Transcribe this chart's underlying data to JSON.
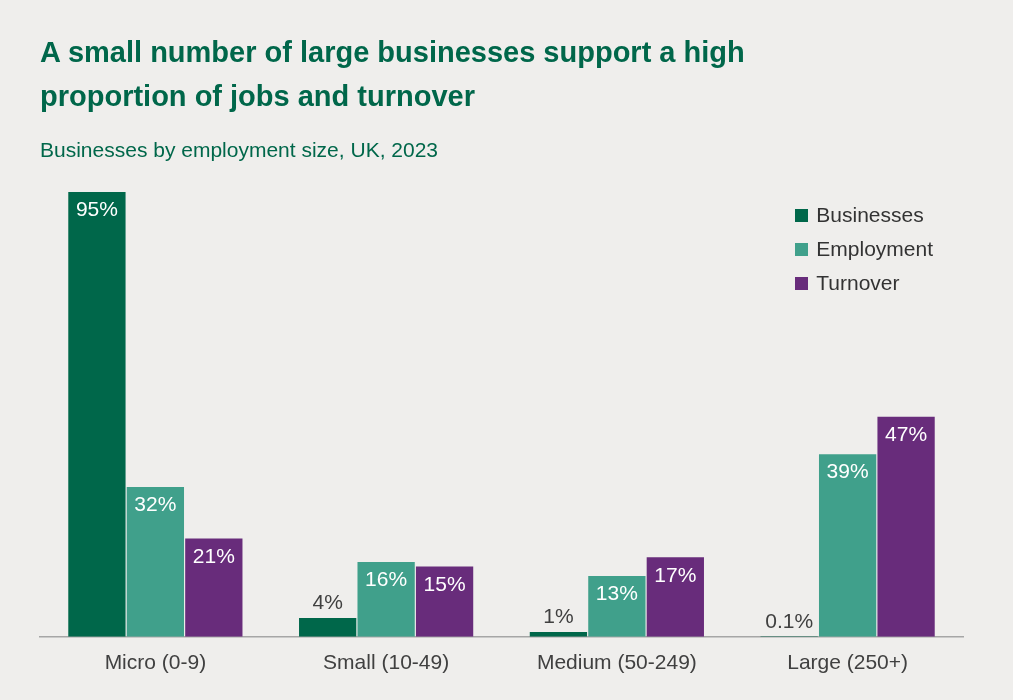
{
  "chart_data": {
    "type": "bar",
    "title": "A small number of large businesses support a high proportion of jobs and turnover",
    "subtitle": "Businesses by employment size, UK, 2023",
    "categories": [
      "Micro (0-9)",
      "Small (10-49)",
      "Medium (50-249)",
      "Large (250+)"
    ],
    "series": [
      {
        "name": "Businesses",
        "color": "#00674a",
        "values": [
          95,
          4,
          1,
          0.1
        ],
        "value_labels": [
          "95%",
          "4%",
          "1%",
          "0.1%"
        ]
      },
      {
        "name": "Employment",
        "color": "#40a08b",
        "values": [
          32,
          16,
          13,
          39
        ],
        "value_labels": [
          "32%",
          "16%",
          "13%",
          "39%"
        ]
      },
      {
        "name": "Turnover",
        "color": "#682c7b",
        "values": [
          21,
          15,
          17,
          47
        ],
        "value_labels": [
          "21%",
          "15%",
          "17%",
          "47%"
        ]
      }
    ],
    "legend": "top right"
  }
}
